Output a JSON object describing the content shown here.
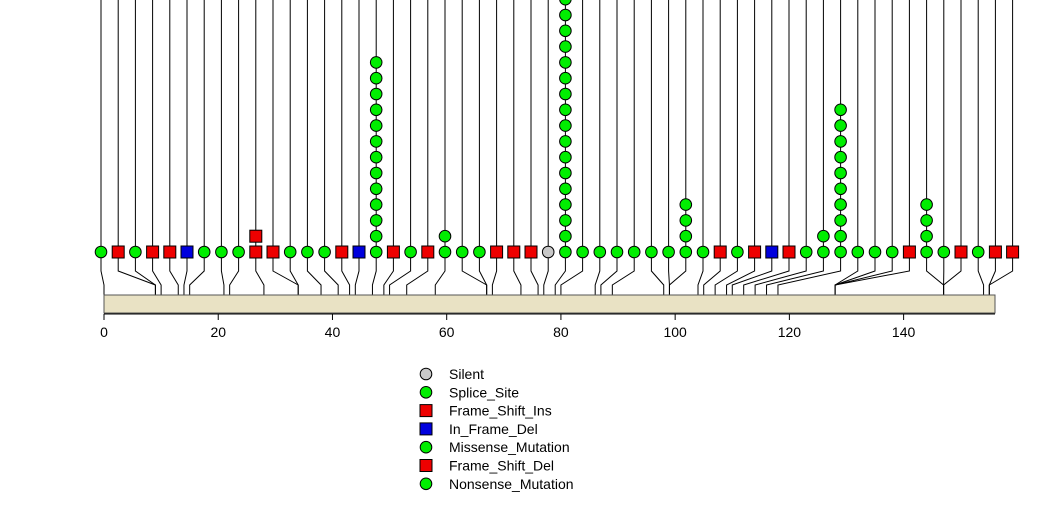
{
  "chart_data": {
    "type": "lollipop",
    "x_axis": {
      "min": 0,
      "max": 156,
      "ticks": [
        0,
        20,
        40,
        60,
        80,
        100,
        120,
        140
      ]
    },
    "protein_length": 156,
    "mutation_types": [
      {
        "key": "silent",
        "label": "Silent",
        "shape": "circle",
        "color": "#c8c8c8"
      },
      {
        "key": "splice",
        "label": "Splice_Site",
        "shape": "circle",
        "color": "#00ee00"
      },
      {
        "key": "fsi",
        "label": "Frame_Shift_Ins",
        "shape": "square",
        "color": "#ee0000"
      },
      {
        "key": "ifd",
        "label": "In_Frame_Del",
        "shape": "square",
        "color": "#0000dd"
      },
      {
        "key": "missense",
        "label": "Missense_Mutation",
        "shape": "circle",
        "color": "#00ee00"
      },
      {
        "key": "fsd",
        "label": "Frame_Shift_Del",
        "shape": "square",
        "color": "#ee0000"
      },
      {
        "key": "nonsense",
        "label": "Nonsense_Mutation",
        "shape": "circle",
        "color": "#00ee00"
      }
    ],
    "mutations": [
      {
        "position": 0,
        "stack": [
          "missense"
        ]
      },
      {
        "position": 9,
        "stack": [
          "fsd"
        ]
      },
      {
        "position": 9,
        "stack": [
          "missense"
        ]
      },
      {
        "position": 10,
        "stack": [
          "fsd"
        ]
      },
      {
        "position": 13,
        "stack": [
          "fsd"
        ]
      },
      {
        "position": 14,
        "stack": [
          "ifd"
        ]
      },
      {
        "position": 15,
        "stack": [
          "missense"
        ]
      },
      {
        "position": 21,
        "stack": [
          "missense"
        ]
      },
      {
        "position": 22,
        "stack": [
          "missense"
        ]
      },
      {
        "position": 28,
        "stack": [
          "fsd",
          "fsd"
        ]
      },
      {
        "position": 34,
        "stack": [
          "fsd"
        ]
      },
      {
        "position": 34,
        "stack": [
          "missense"
        ]
      },
      {
        "position": 38,
        "stack": [
          "missense"
        ]
      },
      {
        "position": 41,
        "stack": [
          "missense"
        ]
      },
      {
        "position": 43,
        "stack": [
          "fsd"
        ]
      },
      {
        "position": 44,
        "stack": [
          "ifd"
        ]
      },
      {
        "position": 47,
        "stack": [
          "missense",
          "missense",
          "missense",
          "missense",
          "missense",
          "missense",
          "missense",
          "missense",
          "missense",
          "missense",
          "missense",
          "missense",
          "missense"
        ]
      },
      {
        "position": 49,
        "stack": [
          "fsd"
        ]
      },
      {
        "position": 50,
        "stack": [
          "missense"
        ]
      },
      {
        "position": 53,
        "stack": [
          "fsd"
        ]
      },
      {
        "position": 58,
        "stack": [
          "missense",
          "missense"
        ]
      },
      {
        "position": 67,
        "stack": [
          "missense"
        ]
      },
      {
        "position": 67,
        "stack": [
          "missense"
        ]
      },
      {
        "position": 68,
        "stack": [
          "fsd"
        ]
      },
      {
        "position": 73,
        "stack": [
          "fsd"
        ]
      },
      {
        "position": 76,
        "stack": [
          "fsd"
        ]
      },
      {
        "position": 77,
        "stack": [
          "silent"
        ]
      },
      {
        "position": 79,
        "stack": [
          "missense",
          "missense",
          "missense",
          "missense",
          "missense",
          "missense",
          "missense",
          "missense",
          "missense",
          "missense",
          "missense",
          "missense",
          "missense",
          "missense",
          "missense",
          "missense",
          "missense"
        ]
      },
      {
        "position": 80,
        "stack": [
          "missense"
        ]
      },
      {
        "position": 86,
        "stack": [
          "missense"
        ]
      },
      {
        "position": 87,
        "stack": [
          "missense"
        ]
      },
      {
        "position": 89,
        "stack": [
          "missense"
        ]
      },
      {
        "position": 98,
        "stack": [
          "missense"
        ]
      },
      {
        "position": 99,
        "stack": [
          "missense"
        ]
      },
      {
        "position": 99,
        "stack": [
          "missense",
          "missense",
          "missense",
          "missense"
        ]
      },
      {
        "position": 104,
        "stack": [
          "missense"
        ]
      },
      {
        "position": 105,
        "stack": [
          "fsd"
        ]
      },
      {
        "position": 107,
        "stack": [
          "missense"
        ]
      },
      {
        "position": 109,
        "stack": [
          "fsd"
        ]
      },
      {
        "position": 110,
        "stack": [
          "ifd"
        ]
      },
      {
        "position": 112,
        "stack": [
          "fsd"
        ]
      },
      {
        "position": 114,
        "stack": [
          "missense"
        ]
      },
      {
        "position": 116,
        "stack": [
          "missense",
          "missense"
        ]
      },
      {
        "position": 118,
        "stack": [
          "missense",
          "missense",
          "missense",
          "missense",
          "missense",
          "missense",
          "missense",
          "missense",
          "missense",
          "missense"
        ]
      },
      {
        "position": 128,
        "stack": [
          "missense"
        ]
      },
      {
        "position": 128,
        "stack": [
          "missense"
        ]
      },
      {
        "position": 128,
        "stack": [
          "missense"
        ]
      },
      {
        "position": 128,
        "stack": [
          "fsd"
        ]
      },
      {
        "position": 147,
        "stack": [
          "missense",
          "missense",
          "missense",
          "missense"
        ]
      },
      {
        "position": 147,
        "stack": [
          "missense"
        ]
      },
      {
        "position": 147,
        "stack": [
          "fsd"
        ]
      },
      {
        "position": 154,
        "stack": [
          "missense"
        ]
      },
      {
        "position": 155,
        "stack": [
          "fsd"
        ]
      },
      {
        "position": 155,
        "stack": [
          "fsd"
        ]
      }
    ]
  }
}
